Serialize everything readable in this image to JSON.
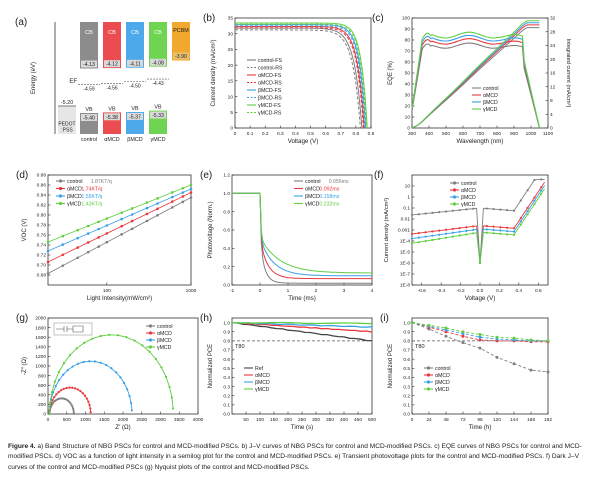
{
  "caption": {
    "label": "Figure 4.",
    "text": "a) Band Structure of NBG PSCs for control and MCD-modified PSCs. b) J–V curves of NBG PSCs for control and MCD-modified PSCs. c) EQE curves of NBG PSCs for control and MCD-modified PSCs. d) VOC as a function of light intensity in a semilog plot for the control and MCD-modified PSCs. e) Transient photovoltage plots for the control and MCD-modified PSCs. f) Dark J–V curves of the control and MCD-modified PSCs (g) Nyquist plots of the control and MCD-modified PSCs."
  },
  "colors": {
    "control": "#7f7f7f",
    "alpha": "#e8383d",
    "beta": "#3aa0e8",
    "gamma": "#5fcf3f",
    "pcbm": "#f0a82e"
  },
  "panels": {
    "a": {
      "letter": "(a)",
      "ylabel": "Energy (eV)",
      "pedot": {
        "label": "PEDOT\n:PSS",
        "value": "-5.20"
      },
      "columns": [
        {
          "name": "control",
          "cb": "-4.13",
          "ef": "-4.59",
          "vb": "-5.40",
          "color": "control",
          "cb_e": -4.13,
          "ef_e": -4.59,
          "vb_e": -5.4
        },
        {
          "name": "αMCD",
          "cb": "-4.12",
          "ef": "-4.56",
          "vb": "-5.38",
          "color": "alpha",
          "cb_e": -4.12,
          "ef_e": -4.56,
          "vb_e": -5.38
        },
        {
          "name": "βMCD",
          "cb": "-4.11",
          "ef": "-4.50",
          "vb": "-5.37",
          "color": "beta",
          "cb_e": -4.11,
          "ef_e": -4.5,
          "vb_e": -5.37
        },
        {
          "name": "γMCD",
          "cb": "-4.08",
          "ef": "-4.43",
          "vb": "-5.33",
          "color": "gamma",
          "cb_e": -4.08,
          "ef_e": -4.43,
          "vb_e": -5.33
        }
      ],
      "pcbm": {
        "label": "PCBM",
        "value": "-3.90",
        "energy": -3.9
      },
      "labels": {
        "cb": "CB",
        "vb": "VB",
        "ef": "EF"
      }
    }
  },
  "chart_data": [
    {
      "panel": "b",
      "type": "line",
      "letter": "(b)",
      "xlabel": "Voltage (V)",
      "ylabel": "Current density (mA/cm²)",
      "xlim": [
        0,
        0.9
      ],
      "ylim": [
        0,
        35
      ],
      "xticks": [
        0,
        0.1,
        0.2,
        0.3,
        0.4,
        0.5,
        0.6,
        0.7,
        0.8,
        0.9
      ],
      "yticks": [
        0,
        5,
        10,
        15,
        20,
        25,
        30,
        35
      ],
      "series": [
        {
          "name": "control-FS",
          "color": "control",
          "dash": false,
          "jsc": 31.8,
          "voc": 0.84,
          "n": 0.05
        },
        {
          "name": "control-RS",
          "color": "control",
          "dash": true,
          "jsc": 31.2,
          "voc": 0.83,
          "n": 0.05
        },
        {
          "name": "αMCD-FS",
          "color": "alpha",
          "dash": false,
          "jsc": 32.3,
          "voc": 0.855,
          "n": 0.045
        },
        {
          "name": "αMCD-RS",
          "color": "alpha",
          "dash": true,
          "jsc": 31.9,
          "voc": 0.85,
          "n": 0.045
        },
        {
          "name": "βMCD-FS",
          "color": "beta",
          "dash": false,
          "jsc": 32.9,
          "voc": 0.865,
          "n": 0.042
        },
        {
          "name": "βMCD-RS",
          "color": "beta",
          "dash": true,
          "jsc": 32.5,
          "voc": 0.86,
          "n": 0.042
        },
        {
          "name": "γMCD-FS",
          "color": "gamma",
          "dash": false,
          "jsc": 33.4,
          "voc": 0.875,
          "n": 0.04
        },
        {
          "name": "γMCD-RS",
          "color": "gamma",
          "dash": true,
          "jsc": 33.0,
          "voc": 0.87,
          "n": 0.04
        }
      ]
    },
    {
      "panel": "c",
      "type": "line",
      "letter": "(c)",
      "xlabel": "Wavelength (nm)",
      "ylabel": "EQE (%)",
      "y2label": "Integrated current (mA/cm²)",
      "xlim": [
        300,
        1100
      ],
      "ylim": [
        0,
        100
      ],
      "y2lim": [
        0,
        32
      ],
      "xticks": [
        300,
        400,
        500,
        600,
        700,
        800,
        900,
        1000,
        1100
      ],
      "yticks": [
        0,
        10,
        20,
        30,
        40,
        50,
        60,
        70,
        80,
        90,
        100
      ],
      "y2ticks": [
        0,
        4,
        8,
        12,
        16,
        20,
        24,
        28,
        32
      ],
      "series": [
        {
          "name": "control",
          "color": "control",
          "plateau": 78,
          "jint": 29.2
        },
        {
          "name": "αMCD",
          "color": "alpha",
          "plateau": 82,
          "jint": 30.0
        },
        {
          "name": "βMCD",
          "color": "beta",
          "plateau": 85,
          "jint": 30.6
        },
        {
          "name": "γMCD",
          "color": "gamma",
          "plateau": 88,
          "jint": 31.2
        }
      ]
    },
    {
      "panel": "d",
      "type": "scatter",
      "letter": "(d)",
      "xlabel": "Light Intensity(mW/cm²)",
      "ylabel": "VOC (V)",
      "xlim": [
        20,
        1000
      ],
      "ylim": [
        0.66,
        0.88
      ],
      "xscale": "log",
      "xticks": [
        100,
        1000
      ],
      "yticks": [
        0.68,
        0.7,
        0.72,
        0.74,
        0.76,
        0.78,
        0.8,
        0.82,
        0.84,
        0.86,
        0.88
      ],
      "series": [
        {
          "name": "control",
          "slope_label": "1.87KT/q",
          "color": "control",
          "v1000": 0.835,
          "v20": 0.683
        },
        {
          "name": "αMCD",
          "slope_label": "1.74KT/q",
          "color": "alpha",
          "v1000": 0.845,
          "v20": 0.706
        },
        {
          "name": "βMCD",
          "slope_label": "1.55KT/q",
          "color": "beta",
          "v1000": 0.852,
          "v20": 0.728
        },
        {
          "name": "γMCD",
          "slope_label": "1.43KT/q",
          "color": "gamma",
          "v1000": 0.86,
          "v20": 0.746
        }
      ]
    },
    {
      "panel": "e",
      "type": "line",
      "letter": "(e)",
      "xlabel": "Time (ms)",
      "ylabel": "Photovoltage (Norm.)",
      "xlim": [
        -1,
        4
      ],
      "ylim": [
        0,
        1.2
      ],
      "xticks": [
        -1,
        0,
        1,
        2,
        3,
        4
      ],
      "yticks": [
        0.0,
        0.2,
        0.4,
        0.6,
        0.8,
        1.0,
        1.2
      ],
      "series": [
        {
          "name": "control",
          "tau": "0.056ms",
          "color": "control",
          "t": 0.056,
          "floor": 0.02
        },
        {
          "name": "αMCD",
          "tau": "0.092ms",
          "color": "alpha",
          "t": 0.092,
          "floor": 0.07
        },
        {
          "name": "βMCD",
          "tau": "0.158ms",
          "color": "beta",
          "t": 0.158,
          "floor": 0.1
        },
        {
          "name": "γMCD",
          "tau": "0.232ms",
          "color": "gamma",
          "t": 0.232,
          "floor": 0.13
        }
      ]
    },
    {
      "panel": "f",
      "type": "scatter",
      "letter": "(f)",
      "xlabel": "Voltage (V)",
      "ylabel": "Current density (mA/cm²)",
      "xlim": [
        -0.7,
        0.7
      ],
      "ylim": [
        -8,
        2
      ],
      "yscale": "log",
      "xticks": [
        -0.6,
        -0.4,
        -0.2,
        0.0,
        0.2,
        0.4,
        0.6
      ],
      "yticks": [
        "10",
        "1",
        "0.1",
        "0.01",
        "0.001",
        "1E-4",
        "1E-5",
        "1E-6",
        "1E-7",
        "1E-8"
      ],
      "series": [
        {
          "name": "control",
          "color": "control",
          "leak": -1.0
        },
        {
          "name": "αMCD",
          "color": "alpha",
          "leak": -2.6
        },
        {
          "name": "βMCD",
          "color": "beta",
          "leak": -2.9
        },
        {
          "name": "γMCD",
          "color": "gamma",
          "leak": -3.2
        }
      ]
    },
    {
      "panel": "g",
      "type": "scatter",
      "letter": "(g)",
      "xlabel": "Z′ (Ω)",
      "ylabel": "-Z″ (Ω)",
      "xlim": [
        0,
        4000
      ],
      "ylim": [
        0,
        2000
      ],
      "xticks": [
        0,
        500,
        1000,
        1500,
        2000,
        2500,
        3000,
        3500,
        4000
      ],
      "yticks": [
        0,
        200,
        400,
        600,
        800,
        1000,
        1200,
        1400,
        1600,
        1800,
        2000
      ],
      "series": [
        {
          "name": "control",
          "color": "control",
          "r": 650
        },
        {
          "name": "αMCD",
          "color": "alpha",
          "r": 1100
        },
        {
          "name": "βMCD",
          "color": "beta",
          "r": 2200
        },
        {
          "name": "γMCD",
          "color": "gamma",
          "r": 3300
        }
      ]
    },
    {
      "panel": "h",
      "type": "line",
      "letter": "(h)",
      "xlabel": "Time (s)",
      "ylabel": "Normalized PCE",
      "xlim": [
        0,
        500
      ],
      "ylim": [
        0,
        1.05
      ],
      "xticks": [
        50,
        100,
        150,
        200,
        250,
        300,
        350,
        400,
        450,
        500
      ],
      "yticks": [
        0.0,
        0.1,
        0.2,
        0.3,
        0.4,
        0.5,
        0.6,
        0.7,
        0.8,
        0.9,
        1.0
      ],
      "t80_label": "T80",
      "series": [
        {
          "name": "Ref",
          "color": "#444444",
          "end": 0.8
        },
        {
          "name": "αMCD",
          "color": "alpha",
          "end": 0.9
        },
        {
          "name": "βMCD",
          "color": "beta",
          "end": 0.95
        },
        {
          "name": "γMCD",
          "color": "gamma",
          "end": 0.99
        }
      ]
    },
    {
      "panel": "i",
      "type": "scatter",
      "letter": "(i)",
      "xlabel": "Time (h)",
      "ylabel": "Normalized PCE",
      "xlim": [
        0,
        192
      ],
      "ylim": [
        0,
        1.05
      ],
      "xticks": [
        0,
        24,
        48,
        72,
        96,
        120,
        144,
        168,
        192
      ],
      "yticks": [
        0.0,
        0.1,
        0.2,
        0.3,
        0.4,
        0.5,
        0.6,
        0.7,
        0.8,
        0.9,
        1.0
      ],
      "t80_label": "T80",
      "x": [
        0,
        24,
        48,
        72,
        96,
        120,
        144,
        168,
        192
      ],
      "series": [
        {
          "name": "control",
          "color": "control",
          "values": [
            1.0,
            0.93,
            0.85,
            0.78,
            0.72,
            0.62,
            0.55,
            0.48,
            0.46
          ]
        },
        {
          "name": "αMCD",
          "color": "alpha",
          "values": [
            1.0,
            0.95,
            0.9,
            0.85,
            0.81,
            0.8,
            0.8,
            0.79,
            0.79
          ]
        },
        {
          "name": "βMCD",
          "color": "beta",
          "values": [
            1.0,
            0.96,
            0.92,
            0.88,
            0.84,
            0.82,
            0.81,
            0.8,
            0.8
          ]
        },
        {
          "name": "γMCD",
          "color": "gamma",
          "values": [
            1.0,
            0.97,
            0.94,
            0.9,
            0.87,
            0.84,
            0.83,
            0.81,
            0.8
          ]
        }
      ]
    }
  ]
}
